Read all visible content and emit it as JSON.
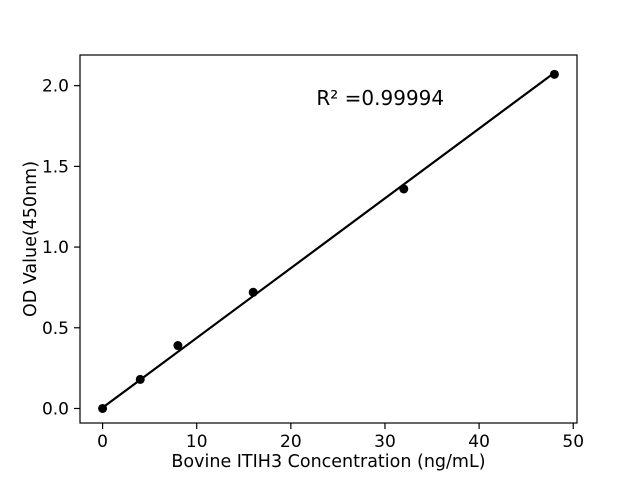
{
  "chart_data": {
    "type": "scatter",
    "title": "",
    "xlabel": "Bovine ITIH3 Concentration (ng/mL)",
    "ylabel": "OD Value(450nm)",
    "x": [
      0,
      4,
      8,
      16,
      32,
      48
    ],
    "y": [
      0.0,
      0.18,
      0.39,
      0.72,
      1.36,
      2.07
    ],
    "fit_line": {
      "x": [
        0,
        48
      ],
      "y": [
        0.005,
        2.08
      ]
    },
    "annotation": {
      "text": "R² =0.99994",
      "x": 29.5,
      "y": 1.88
    },
    "xticks": {
      "values": [
        0,
        10,
        20,
        30,
        40,
        50
      ],
      "labels": [
        "0",
        "10",
        "20",
        "30",
        "40",
        "50"
      ]
    },
    "yticks": {
      "values": [
        0.0,
        0.5,
        1.0,
        1.5,
        2.0
      ],
      "labels": [
        "0.0",
        "0.5",
        "1.0",
        "1.5",
        "2.0"
      ]
    },
    "xlim": [
      -2.4,
      50.4
    ],
    "ylim": [
      -0.09,
      2.19
    ],
    "grid": false,
    "legend": null,
    "colors": {
      "marker": "#000000",
      "line": "#000000",
      "spine": "#000000",
      "text": "#000000",
      "background": "#ffffff"
    },
    "marker_radius": 4.5,
    "line_width": 2.2
  }
}
